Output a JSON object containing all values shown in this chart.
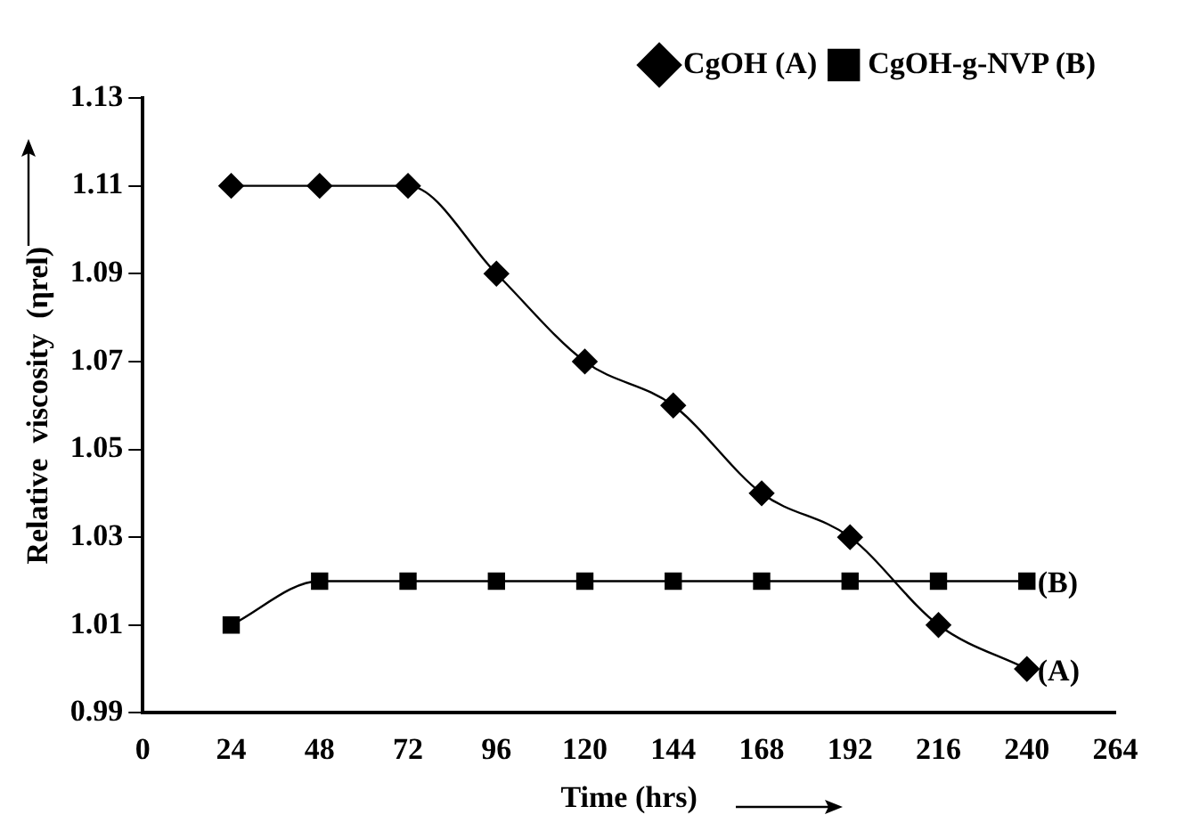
{
  "chart_data": {
    "type": "line",
    "xlabel": "Time (hrs)",
    "ylabel": "Relative  viscosity  (ηrel)",
    "x": [
      24,
      48,
      72,
      96,
      120,
      144,
      168,
      192,
      216,
      240
    ],
    "series": [
      {
        "name": "CgOH (A)",
        "color": "#000000",
        "marker": "diamond",
        "values": [
          1.11,
          1.11,
          1.11,
          1.09,
          1.07,
          1.06,
          1.04,
          1.03,
          1.01,
          1.0
        ]
      },
      {
        "name": "CgOH-g-NVP (B)",
        "color": "#000000",
        "marker": "square",
        "values": [
          1.01,
          1.02,
          1.02,
          1.02,
          1.02,
          1.02,
          1.02,
          1.02,
          1.02,
          1.02
        ]
      }
    ],
    "annotations": [
      {
        "text": "(A)",
        "x": 240,
        "y": 1.0
      },
      {
        "text": "(B)",
        "x": 240,
        "y": 1.02
      }
    ],
    "xlim": [
      0,
      264
    ],
    "xticks": [
      0,
      24,
      48,
      72,
      96,
      120,
      144,
      168,
      192,
      216,
      240,
      264
    ],
    "ylim": [
      0.99,
      1.13
    ],
    "yticks": [
      0.99,
      1.01,
      1.03,
      1.05,
      1.07,
      1.09,
      1.11,
      1.13
    ],
    "grid": false,
    "legend": "top right"
  }
}
